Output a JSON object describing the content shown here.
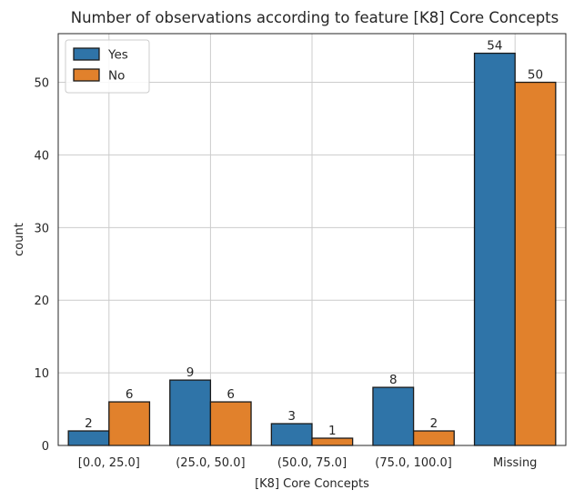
{
  "chart_data": {
    "type": "bar",
    "title": "Number of observations according to feature [K8] Core Concepts",
    "xlabel": "[K8] Core Concepts",
    "ylabel": "count",
    "categories": [
      "[0.0, 25.0]",
      "(25.0, 50.0]",
      "(50.0, 75.0]",
      "(75.0, 100.0]",
      "Missing"
    ],
    "series": [
      {
        "name": "Yes",
        "values": [
          2,
          9,
          3,
          8,
          54
        ],
        "color": "#2f74a8"
      },
      {
        "name": "No",
        "values": [
          6,
          6,
          1,
          2,
          50
        ],
        "color": "#e1812c"
      }
    ],
    "ylim": [
      0,
      56.7
    ],
    "yticks": [
      0,
      10,
      20,
      30,
      40,
      50
    ],
    "grid": true,
    "legend": "top-left"
  }
}
